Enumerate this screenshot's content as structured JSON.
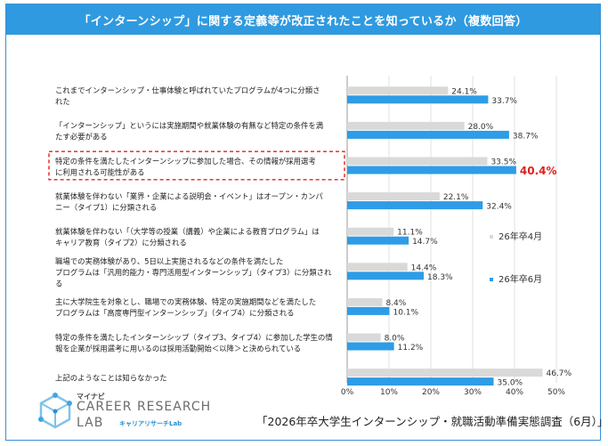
{
  "title": "「インターンシップ」に関する定義等が改正されたことを知っているか（複数回答）",
  "source": "「2026年卒大学生インターンシップ・就職活動準備実態調査（6月）」",
  "logo": {
    "small": "マイナビ",
    "main": "CAREER RESEARCH",
    "lab": "LAB",
    "sub": "キャリアリサーチLab"
  },
  "colors": {
    "header": "#2f9ae0",
    "april": "#d9d9d9",
    "june": "#2e9ce6",
    "highlight": "#e02020"
  },
  "chart_data": {
    "type": "bar",
    "orientation": "horizontal",
    "categories": [
      [
        "これまでインターンシップ・仕事体験と呼ばれていたプログラムが4つに分類さ",
        "れた"
      ],
      [
        "「インターンシップ」というには実施期間や就業体験の有無など特定の条件を満",
        "たす必要がある"
      ],
      [
        "特定の条件を満たしたインターンシップに参加した場合、その情報が採用選考",
        "に利用される可能性がある"
      ],
      [
        "就業体験を伴わない「業界・企業による説明会・イベント」はオープン・カンパ",
        "ニー（タイプ1）に分類される"
      ],
      [
        "就業体験を伴わない「（大学等の授業（講義）や企業による教育プログラム」は",
        "キャリア教育（タイプ2）に分類される"
      ],
      [
        "職場での実務体験があり、5日以上実施されるなどの条件を満たした",
        "プログラムは「汎用的能力・専門活用型インターンシップ」（タイプ3）に分類され",
        "る"
      ],
      [
        "主に大学院生を対象とし、職場での実務体験、特定の実施期間などを満たした",
        "プログラムは「高度専門型インターンシップ」（タイプ4）に分類される"
      ],
      [
        "特定の条件を満たしたインターンシップ（タイプ3、タイプ4）に参加した学生の情",
        "報を企業が採用選考に用いるのは採用活動開始＜以降＞と決められている"
      ],
      [
        "上記のようなことは知らなかった"
      ]
    ],
    "series": [
      {
        "name": "26年卒4月",
        "values": [
          24.1,
          28.0,
          33.5,
          22.1,
          11.1,
          14.4,
          8.4,
          8.0,
          46.7
        ]
      },
      {
        "name": "26年卒6月",
        "values": [
          33.7,
          38.7,
          40.4,
          32.4,
          14.7,
          18.3,
          10.1,
          11.2,
          35.0
        ]
      }
    ],
    "value_labels": {
      "april": [
        "24.1%",
        "28.0%",
        "33.5%",
        "22.1%",
        "11.1%",
        "14.4%",
        "8.4%",
        "8.0%",
        "46.7%"
      ],
      "june": [
        "33.7%",
        "38.7%",
        "40.4%",
        "32.4%",
        "14.7%",
        "18.3%",
        "10.1%",
        "11.2%",
        "35.0%"
      ]
    },
    "highlight_index": 2,
    "x_ticks": [
      "0%",
      "10%",
      "20%",
      "30%",
      "40%",
      "50%"
    ],
    "xlim": [
      0,
      50
    ],
    "legend_position": "right"
  }
}
